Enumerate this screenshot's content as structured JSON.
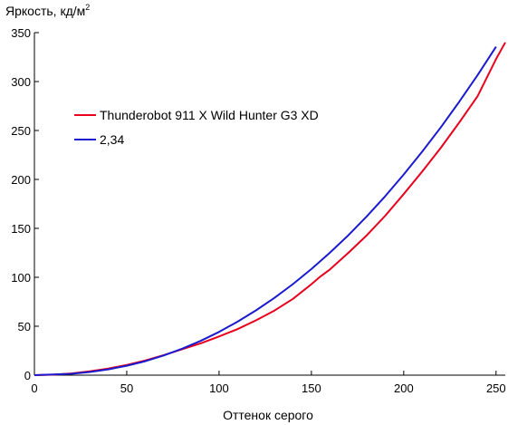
{
  "chart_data": {
    "type": "line",
    "title": "",
    "ylabel": "Яркость, кд/м",
    "ylabel_sup": "2",
    "xlabel": "Оттенок серого",
    "xlim": [
      0,
      255
    ],
    "ylim": [
      0,
      350
    ],
    "xticks": [
      0,
      50,
      100,
      150,
      200,
      250
    ],
    "yticks": [
      0,
      50,
      100,
      150,
      200,
      250,
      300,
      350
    ],
    "grid": false,
    "legend_position": "upper-left",
    "series": [
      {
        "name": "Thunderobot 911 X Wild Hunter G3 XD",
        "color": "#e8001c",
        "x": [
          0,
          10,
          20,
          30,
          40,
          50,
          60,
          70,
          80,
          90,
          100,
          110,
          120,
          130,
          140,
          150,
          155,
          160,
          170,
          180,
          190,
          200,
          210,
          220,
          230,
          240,
          250,
          255
        ],
        "y": [
          0,
          0.5,
          1.8,
          4,
          6.8,
          10.5,
          15,
          20.5,
          26.5,
          32.5,
          39.5,
          47,
          56,
          66,
          78,
          93,
          101,
          108,
          125,
          143,
          163,
          185,
          208,
          232,
          258,
          285,
          323,
          340
        ]
      },
      {
        "name": "2,34",
        "color": "#1a1ad0",
        "x": [
          0,
          10,
          20,
          30,
          40,
          50,
          60,
          70,
          80,
          90,
          100,
          110,
          120,
          130,
          140,
          150,
          160,
          170,
          180,
          190,
          200,
          210,
          220,
          230,
          240,
          250,
          255
        ],
        "y": [
          0,
          0.7,
          1.4,
          3.2,
          5.9,
          9.6,
          14.3,
          20.1,
          27.0,
          35.0,
          44.2,
          54.6,
          66.2,
          79.0,
          93.1,
          108.4,
          125.1,
          143.0,
          162.3,
          183.0,
          205.0,
          228.3,
          253.0,
          279.2,
          306.6,
          335.6,
          350.6
        ]
      }
    ]
  }
}
